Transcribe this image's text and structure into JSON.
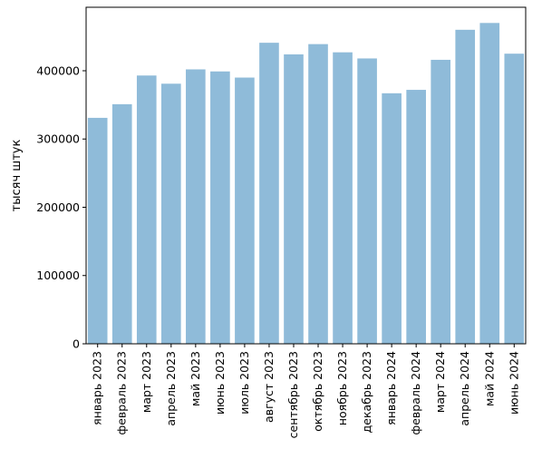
{
  "chart_data": {
    "type": "bar",
    "title": "",
    "xlabel": "",
    "ylabel": "тысяч штук",
    "categories": [
      "январь 2023",
      "февраль 2023",
      "март 2023",
      "апрель 2023",
      "май 2023",
      "июнь 2023",
      "июль 2023",
      "август 2023",
      "сентябрь 2023",
      "октябрь 2023",
      "ноябрь 2023",
      "декабрь 2023",
      "январь 2024",
      "февраль 2024",
      "март 2024",
      "апрель 2024",
      "май 2024",
      "июнь 2024"
    ],
    "values": [
      331000,
      351000,
      393000,
      381000,
      402000,
      399000,
      390000,
      441000,
      424000,
      439000,
      427000,
      418000,
      367000,
      372000,
      416000,
      460000,
      470000,
      425000
    ],
    "ylim": [
      0,
      493000
    ],
    "yticks": [
      0,
      100000,
      200000,
      300000,
      400000
    ],
    "ytick_labels": [
      "0",
      "100000",
      "200000",
      "300000",
      "400000"
    ],
    "bar_color": "#1f77b4",
    "bar_opacity": 0.5,
    "grid": false,
    "legend": "none"
  }
}
